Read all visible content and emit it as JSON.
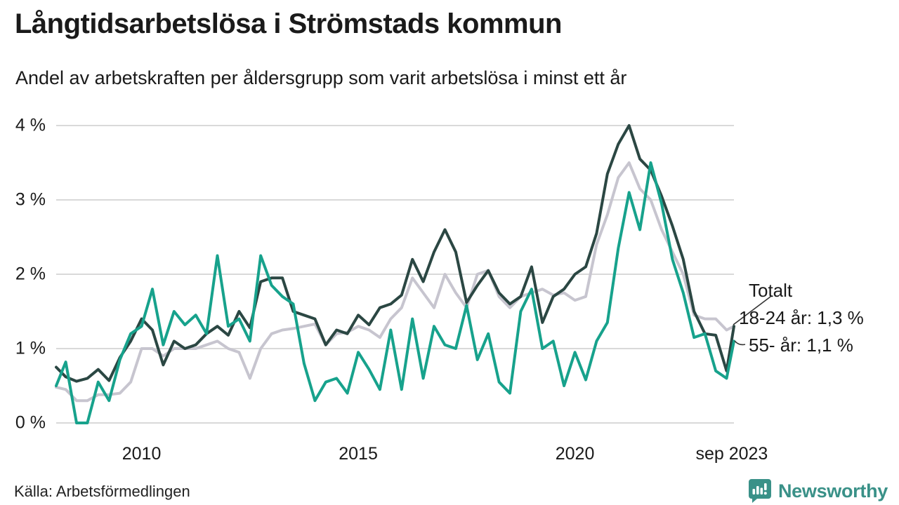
{
  "header": {
    "title": "Långtidsarbetslösa i Strömstads kommun",
    "subtitle": "Andel av arbetskraften per åldersgrupp som varit arbetslösa i minst ett år"
  },
  "legend": {
    "totalt": "Totalt",
    "youth": "18-24 år: 1,3 %",
    "senior": "55- år: 1,1 %"
  },
  "footer": {
    "source": "Källa: Arbetsförmedlingen",
    "brand": "Newsworthy"
  },
  "colors": {
    "totalt": "#2b4743",
    "youth": "#c7c5cf",
    "senior": "#17a28c",
    "gridline": "#d9d9d9",
    "leader": "#333333",
    "brand_teal": "#3a9188"
  },
  "chart_data": {
    "type": "line",
    "title": "Långtidsarbetslösa i Strömstads kommun",
    "subtitle": "Andel av arbetskraften per åldersgrupp som varit arbetslösa i minst ett år",
    "x_unit": "decimal_year",
    "ylim": [
      0,
      4
    ],
    "grid": "horizontal",
    "legend_position": "right-end-labels",
    "yticks": [
      {
        "label": "0 %",
        "v": 0
      },
      {
        "label": "1 %",
        "v": 1
      },
      {
        "label": "2 %",
        "v": 2
      },
      {
        "label": "3 %",
        "v": 3
      },
      {
        "label": "4 %",
        "v": 4
      }
    ],
    "xticks": [
      {
        "label": "2010",
        "t": 2010
      },
      {
        "label": "2015",
        "t": 2015
      },
      {
        "label": "2020",
        "t": 2020
      },
      {
        "label": "sep 2023",
        "t": 2023.62
      }
    ],
    "x": [
      2008.03,
      2008.25,
      2008.5,
      2008.75,
      2009.0,
      2009.25,
      2009.5,
      2009.75,
      2010.0,
      2010.25,
      2010.5,
      2010.75,
      2011.0,
      2011.25,
      2011.5,
      2011.75,
      2012.0,
      2012.25,
      2012.5,
      2012.75,
      2013.0,
      2013.25,
      2013.5,
      2013.75,
      2014.0,
      2014.25,
      2014.5,
      2014.75,
      2015.0,
      2015.25,
      2015.5,
      2015.75,
      2016.0,
      2016.25,
      2016.5,
      2016.75,
      2017.0,
      2017.25,
      2017.5,
      2017.75,
      2018.0,
      2018.25,
      2018.5,
      2018.75,
      2019.0,
      2019.25,
      2019.5,
      2019.75,
      2020.0,
      2020.25,
      2020.5,
      2020.75,
      2021.0,
      2021.25,
      2021.5,
      2021.75,
      2022.0,
      2022.25,
      2022.5,
      2022.75,
      2023.0,
      2023.25,
      2023.5,
      2023.67
    ],
    "series": [
      {
        "name": "Totalt",
        "end_value_pct": 1.3,
        "values": [
          0.75,
          0.62,
          0.56,
          0.6,
          0.72,
          0.57,
          0.88,
          1.1,
          1.4,
          1.25,
          0.78,
          1.1,
          1.0,
          1.05,
          1.2,
          1.3,
          1.18,
          1.5,
          1.28,
          1.9,
          1.95,
          1.95,
          1.5,
          1.45,
          1.4,
          1.05,
          1.25,
          1.2,
          1.45,
          1.32,
          1.55,
          1.6,
          1.72,
          2.2,
          1.9,
          2.3,
          2.6,
          2.3,
          1.62,
          1.85,
          2.05,
          1.75,
          1.6,
          1.7,
          2.1,
          1.35,
          1.7,
          1.8,
          2.0,
          2.1,
          2.55,
          3.35,
          3.75,
          4.0,
          3.55,
          3.4,
          3.05,
          2.65,
          2.2,
          1.5,
          1.2,
          1.18,
          0.7,
          1.3
        ]
      },
      {
        "name": "18-24 år",
        "end_value_pct": 1.3,
        "values": [
          0.48,
          0.45,
          0.3,
          0.3,
          0.38,
          0.38,
          0.4,
          0.55,
          1.0,
          1.0,
          0.9,
          1.0,
          1.0,
          1.0,
          1.05,
          1.1,
          1.0,
          0.95,
          0.6,
          1.0,
          1.2,
          1.25,
          1.27,
          1.3,
          1.33,
          1.05,
          1.2,
          1.22,
          1.3,
          1.25,
          1.15,
          1.4,
          1.55,
          1.95,
          1.75,
          1.55,
          2.0,
          1.75,
          1.55,
          2.0,
          2.05,
          1.7,
          1.55,
          1.7,
          1.75,
          1.8,
          1.72,
          1.75,
          1.65,
          1.7,
          2.4,
          2.8,
          3.3,
          3.5,
          3.15,
          3.0,
          2.6,
          2.3,
          2.0,
          1.45,
          1.4,
          1.4,
          1.25,
          1.3
        ]
      },
      {
        "name": "55- år",
        "end_value_pct": 1.1,
        "values": [
          0.5,
          0.82,
          0.0,
          0.0,
          0.55,
          0.3,
          0.85,
          1.2,
          1.3,
          1.8,
          1.05,
          1.5,
          1.32,
          1.45,
          1.2,
          2.25,
          1.3,
          1.4,
          1.1,
          2.25,
          1.85,
          1.7,
          1.6,
          0.8,
          0.3,
          0.55,
          0.6,
          0.4,
          0.95,
          0.72,
          0.45,
          1.25,
          0.45,
          1.4,
          0.6,
          1.3,
          1.05,
          1.0,
          1.58,
          0.85,
          1.2,
          0.55,
          0.4,
          1.5,
          1.8,
          1.0,
          1.1,
          0.5,
          0.95,
          0.58,
          1.1,
          1.35,
          2.35,
          3.1,
          2.6,
          3.5,
          2.95,
          2.2,
          1.75,
          1.15,
          1.2,
          0.7,
          0.6,
          1.1
        ]
      }
    ]
  }
}
